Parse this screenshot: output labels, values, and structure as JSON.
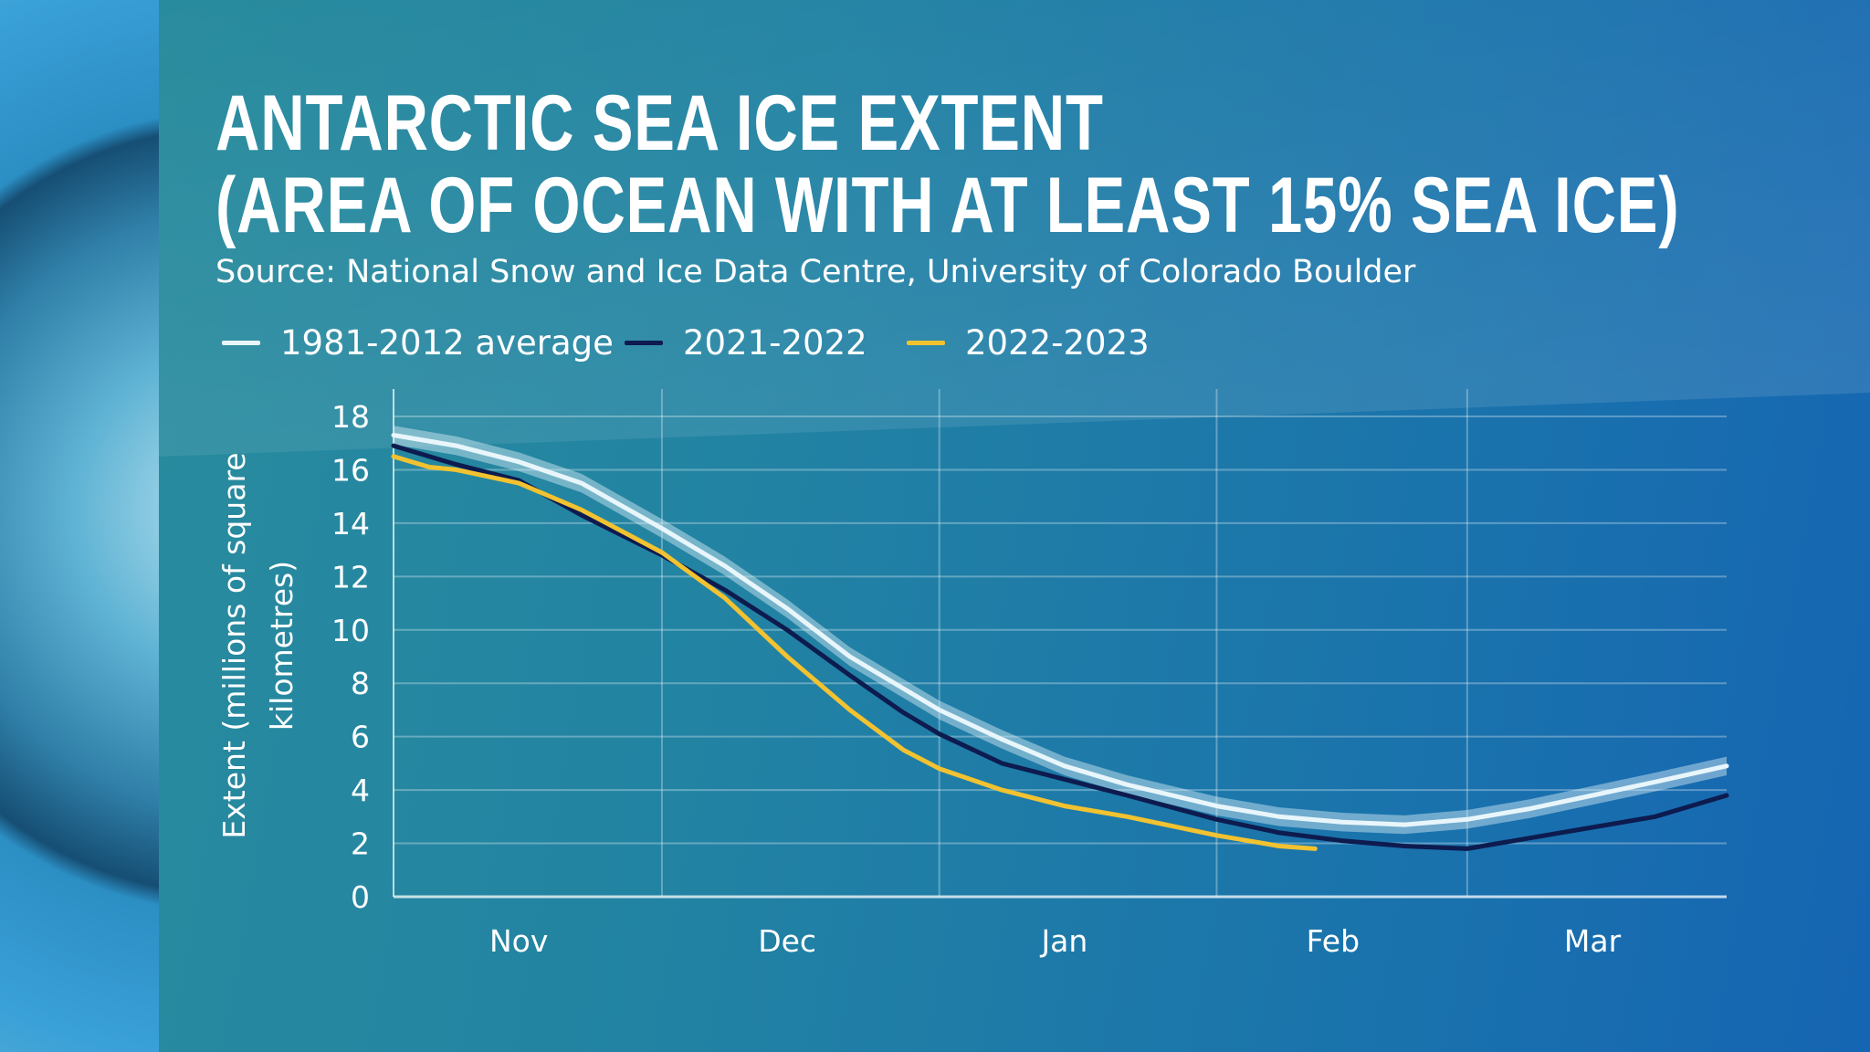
{
  "chart_data": {
    "type": "line",
    "title": "ANTARCTIC SEA ICE EXTENT",
    "subtitle": "(AREA OF OCEAN WITH AT LEAST 15% SEA ICE)",
    "source": "Source: National Snow and Ice Data Centre, University of Colorado Boulder",
    "ylabel_lines": [
      "Extent (millions of square",
      "kilometres)"
    ],
    "xlabel": "",
    "ylim": [
      0,
      18
    ],
    "yticks": [
      "0",
      "2",
      "4",
      "6",
      "8",
      "10",
      "12",
      "14",
      "16",
      "18"
    ],
    "xrange": [
      "11-01",
      "03-30"
    ],
    "xticks": [
      {
        "label": "Nov",
        "date": "11-15"
      },
      {
        "label": "Dec",
        "date": "12-15"
      },
      {
        "label": "Jan",
        "date": "01-15"
      },
      {
        "label": "Feb",
        "date": "02-14"
      },
      {
        "label": "Mar",
        "date": "03-15"
      }
    ],
    "vertical_grid_dates": [
      "12-01",
      "01-01",
      "02-01",
      "03-01"
    ],
    "grid": true,
    "legend_placement": "top-left",
    "series": [
      {
        "name": "1981-2012 average",
        "color": "#e8f6fb",
        "band": 0.35,
        "x": [
          "11-01",
          "11-08",
          "11-15",
          "11-22",
          "12-01",
          "12-08",
          "12-15",
          "12-22",
          "01-01",
          "01-08",
          "01-15",
          "01-22",
          "02-01",
          "02-08",
          "02-15",
          "02-22",
          "03-01",
          "03-08",
          "03-15",
          "03-22",
          "03-30"
        ],
        "y": [
          17.3,
          16.9,
          16.3,
          15.5,
          13.8,
          12.4,
          10.8,
          9.0,
          7.0,
          5.9,
          4.9,
          4.2,
          3.4,
          3.0,
          2.8,
          2.7,
          2.9,
          3.3,
          3.8,
          4.3,
          4.9
        ]
      },
      {
        "name": "2021-2022",
        "color": "#0d1b4f",
        "x": [
          "11-01",
          "11-08",
          "11-15",
          "11-22",
          "12-01",
          "12-08",
          "12-15",
          "12-22",
          "12-28",
          "01-01",
          "01-08",
          "01-15",
          "01-22",
          "02-01",
          "02-08",
          "02-15",
          "02-22",
          "03-01",
          "03-08",
          "03-15",
          "03-22",
          "03-30"
        ],
        "y": [
          16.9,
          16.2,
          15.6,
          14.3,
          12.8,
          11.5,
          10.0,
          8.3,
          6.9,
          6.1,
          5.0,
          4.4,
          3.8,
          2.9,
          2.4,
          2.1,
          1.9,
          1.8,
          2.2,
          2.6,
          3.0,
          3.8
        ]
      },
      {
        "name": "2022-2023",
        "color": "#f2c230",
        "x": [
          "11-01",
          "11-05",
          "11-08",
          "11-15",
          "11-22",
          "12-01",
          "12-08",
          "12-15",
          "12-22",
          "12-28",
          "01-01",
          "01-08",
          "01-15",
          "01-22",
          "02-01",
          "02-08",
          "02-12"
        ],
        "y": [
          16.5,
          16.1,
          16.0,
          15.5,
          14.5,
          12.9,
          11.2,
          9.0,
          7.0,
          5.5,
          4.8,
          4.0,
          3.4,
          3.0,
          2.3,
          1.9,
          1.8
        ]
      }
    ]
  }
}
